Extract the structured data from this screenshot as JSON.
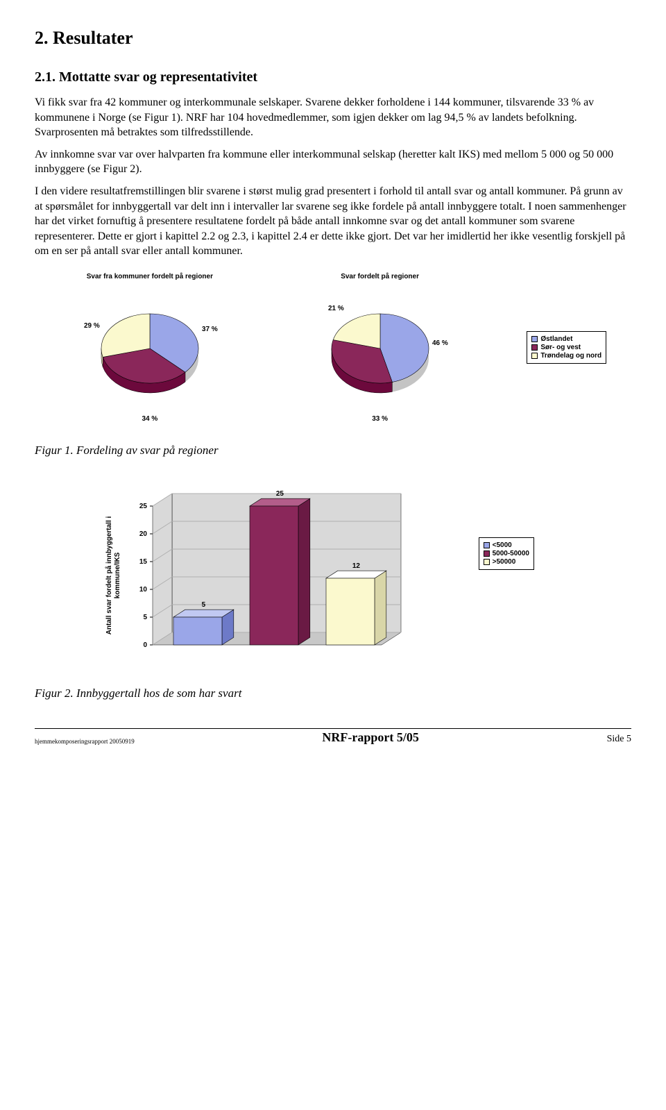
{
  "section_heading": "2. Resultater",
  "subsection_heading": "2.1. Mottatte svar og representativitet",
  "para1": "Vi fikk svar fra 42 kommuner og interkommunale selskaper. Svarene dekker forholdene i 144 kommuner, tilsvarende 33 % av kommunene i Norge (se Figur 1). NRF har 104 hovedmedlemmer, som igjen dekker om lag 94,5 % av landets befolkning. Svarprosenten må betraktes som tilfredsstillende.",
  "para2": "Av innkomne svar var over halvparten fra kommune eller interkommunal selskap (heretter kalt IKS) med mellom 5 000 og 50 000 innbyggere (se Figur 2).",
  "para3": "I den videre resultatfremstillingen blir svarene i størst mulig grad presentert i forhold til antall svar og antall kommuner. På grunn av at spørsmålet for innbyggertall var delt inn i intervaller lar svarene seg ikke fordele på antall innbyggere totalt. I noen sammenhenger har det virket fornuftig å presentere resultatene fordelt på både antall innkomne svar og det antall kommuner som svarene representerer. Dette er gjort i kapittel 2.2 og 2.3, i kapittel 2.4 er dette ikke gjort. Det var her imidlertid her ikke vesentlig forskjell på om en ser på antall svar eller antall kommuner.",
  "pie1": {
    "type": "pie",
    "title": "Svar fra kommuner fordelt på regioner",
    "slices": [
      {
        "label": "37 %",
        "value": 37,
        "color": "#9aa6e8"
      },
      {
        "label": "34 %",
        "value": 34,
        "color": "#8a275a"
      },
      {
        "label": "29 %",
        "value": 29,
        "color": "#fbf9ce"
      }
    ],
    "bottom_label": "34 %"
  },
  "pie2": {
    "type": "pie",
    "title": "Svar fordelt på regioner",
    "slices": [
      {
        "label": "46 %",
        "value": 46,
        "color": "#9aa6e8"
      },
      {
        "label": "33 %",
        "value": 33,
        "color": "#8a275a"
      },
      {
        "label": "21 %",
        "value": 21,
        "color": "#fbf9ce"
      }
    ],
    "bottom_label": "33 %"
  },
  "pie_legend": [
    {
      "label": "Østlandet",
      "color": "#9aa6e8"
    },
    {
      "label": "Sør- og vest",
      "color": "#8a275a"
    },
    {
      "label": "Trøndelag og nord",
      "color": "#fbf9ce"
    }
  ],
  "fig1_caption": "Figur 1. Fordeling av svar på regioner",
  "bar3d": {
    "type": "bar3d",
    "y_axis_label": "Antall svar fordelt på innbyggertall i kommune/IKS",
    "y_ticks": [
      0,
      5,
      10,
      15,
      20,
      25
    ],
    "ymax": 25,
    "bars": [
      {
        "value": 5,
        "label": "5",
        "fill": "#9aa6e8",
        "side": "#6d7ac8",
        "top": "#c1c9f2"
      },
      {
        "value": 25,
        "label": "25",
        "fill": "#8a275a",
        "side": "#6a1a44",
        "top": "#b35d8a"
      },
      {
        "value": 12,
        "label": "12",
        "fill": "#fbf9ce",
        "side": "#d9d6a8",
        "top": "#ffffff"
      }
    ],
    "floor_color": "#c8c8c8",
    "wall_color": "#d9d9d9",
    "grid_color": "#b0b0b0"
  },
  "bar_legend": [
    {
      "label": "<5000",
      "color": "#9aa6e8"
    },
    {
      "label": "5000-50000",
      "color": "#8a275a"
    },
    {
      "label": ">50000",
      "color": "#fbf9ce"
    }
  ],
  "fig2_caption": "Figur 2. Innbyggertall hos de som har svart",
  "footer_left": "hjemmekomposeringsrapport 20050919",
  "footer_center": "NRF-rapport 5/05",
  "footer_right": "Side 5"
}
